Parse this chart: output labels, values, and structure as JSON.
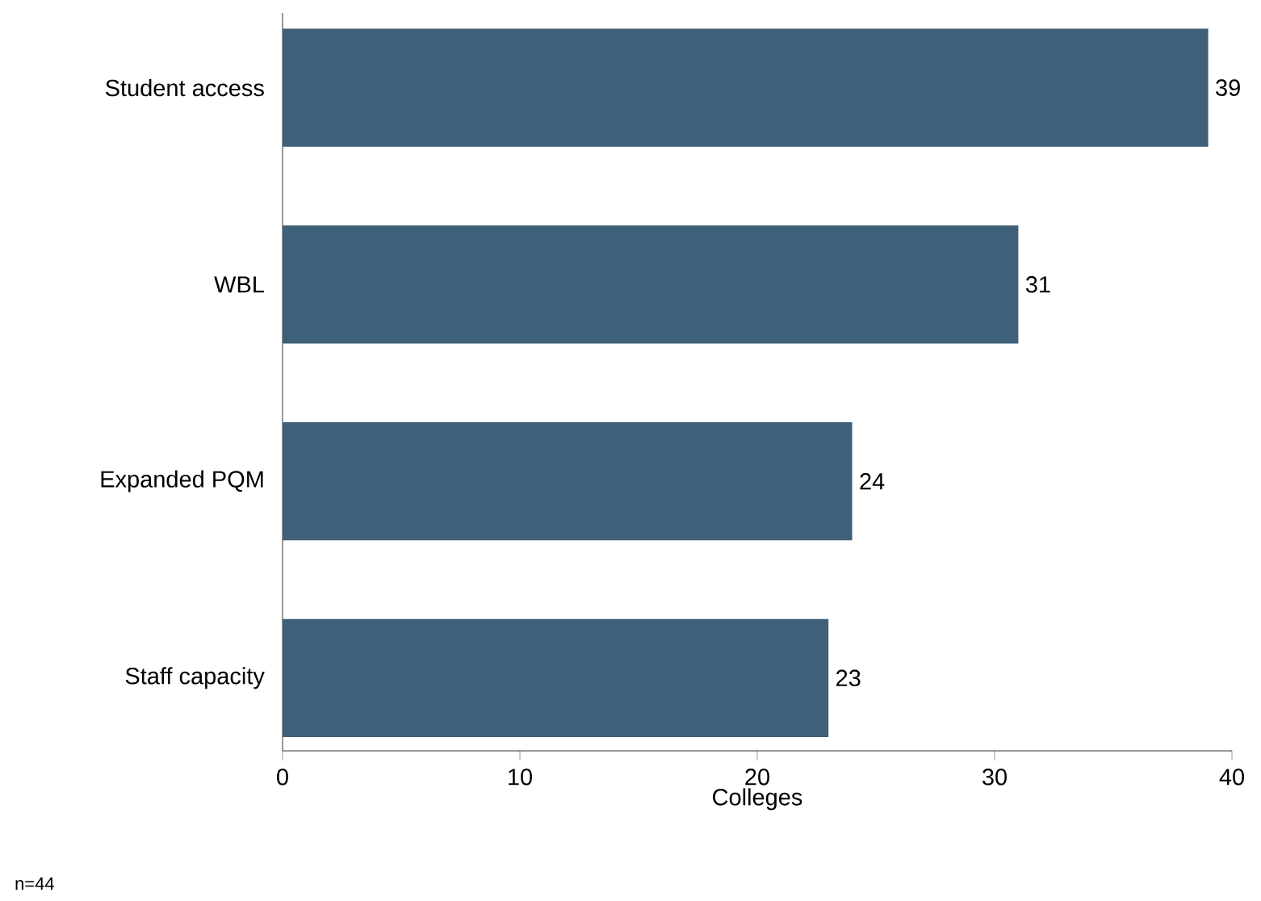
{
  "chart_data": {
    "type": "bar",
    "orientation": "horizontal",
    "xlabel": "Colleges",
    "categories": [
      "Student access",
      "WBL",
      "Expanded PQM",
      "Staff capacity"
    ],
    "values": [
      39,
      31,
      24,
      23
    ],
    "color": "#3f6079",
    "xlim": [
      0,
      40
    ],
    "xticks": [
      0,
      10,
      20,
      30,
      40
    ],
    "grid": false,
    "data_labels": true,
    "annotations": [
      "n=44"
    ]
  }
}
